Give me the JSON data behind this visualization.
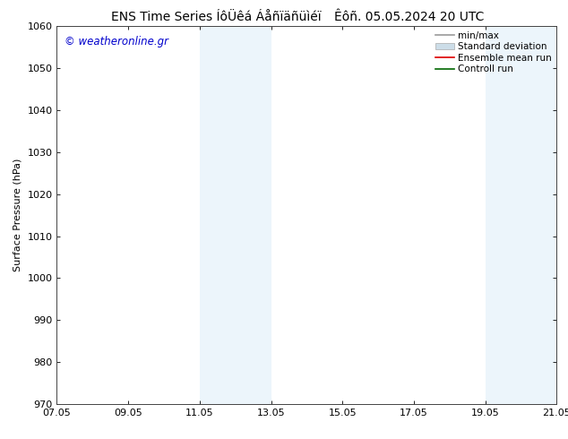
{
  "title_left_raw": "ENS Time Series ÍôÜêá Áåñïäñüìéï",
  "title_right_raw": "Êôñ. 05.05.2024 20 UTC",
  "ylabel": "Surface Pressure (hPa)",
  "ylim": [
    970,
    1060
  ],
  "yticks": [
    970,
    980,
    990,
    1000,
    1010,
    1020,
    1030,
    1040,
    1050,
    1060
  ],
  "xlim_start": 0,
  "xlim_end": 14,
  "xtick_labels": [
    "07.05",
    "09.05",
    "11.05",
    "13.05",
    "15.05",
    "17.05",
    "19.05",
    "21.05"
  ],
  "xtick_positions": [
    0,
    2,
    4,
    6,
    8,
    10,
    12,
    14
  ],
  "shade_bands": [
    {
      "xmin": 4.0,
      "xmax": 5.0
    },
    {
      "xmin": 5.0,
      "xmax": 6.0
    },
    {
      "xmin": 12.0,
      "xmax": 13.0
    },
    {
      "xmin": 13.0,
      "xmax": 14.0
    }
  ],
  "shade_color": "#ddeef8",
  "shade_alpha": 0.55,
  "background_color": "#ffffff",
  "watermark": "© weatheronline.gr",
  "watermark_color": "#0000cc",
  "legend_items": [
    {
      "label": "min/max",
      "color": "#999999",
      "lw": 1.2
    },
    {
      "label": "Standard deviation",
      "color": "#ccdde8",
      "patch": true
    },
    {
      "label": "Ensemble mean run",
      "color": "#dd0000",
      "lw": 1.2
    },
    {
      "label": "Controll run",
      "color": "#006600",
      "lw": 1.2
    }
  ],
  "title_fontsize": 10,
  "axis_fontsize": 8,
  "tick_fontsize": 8
}
